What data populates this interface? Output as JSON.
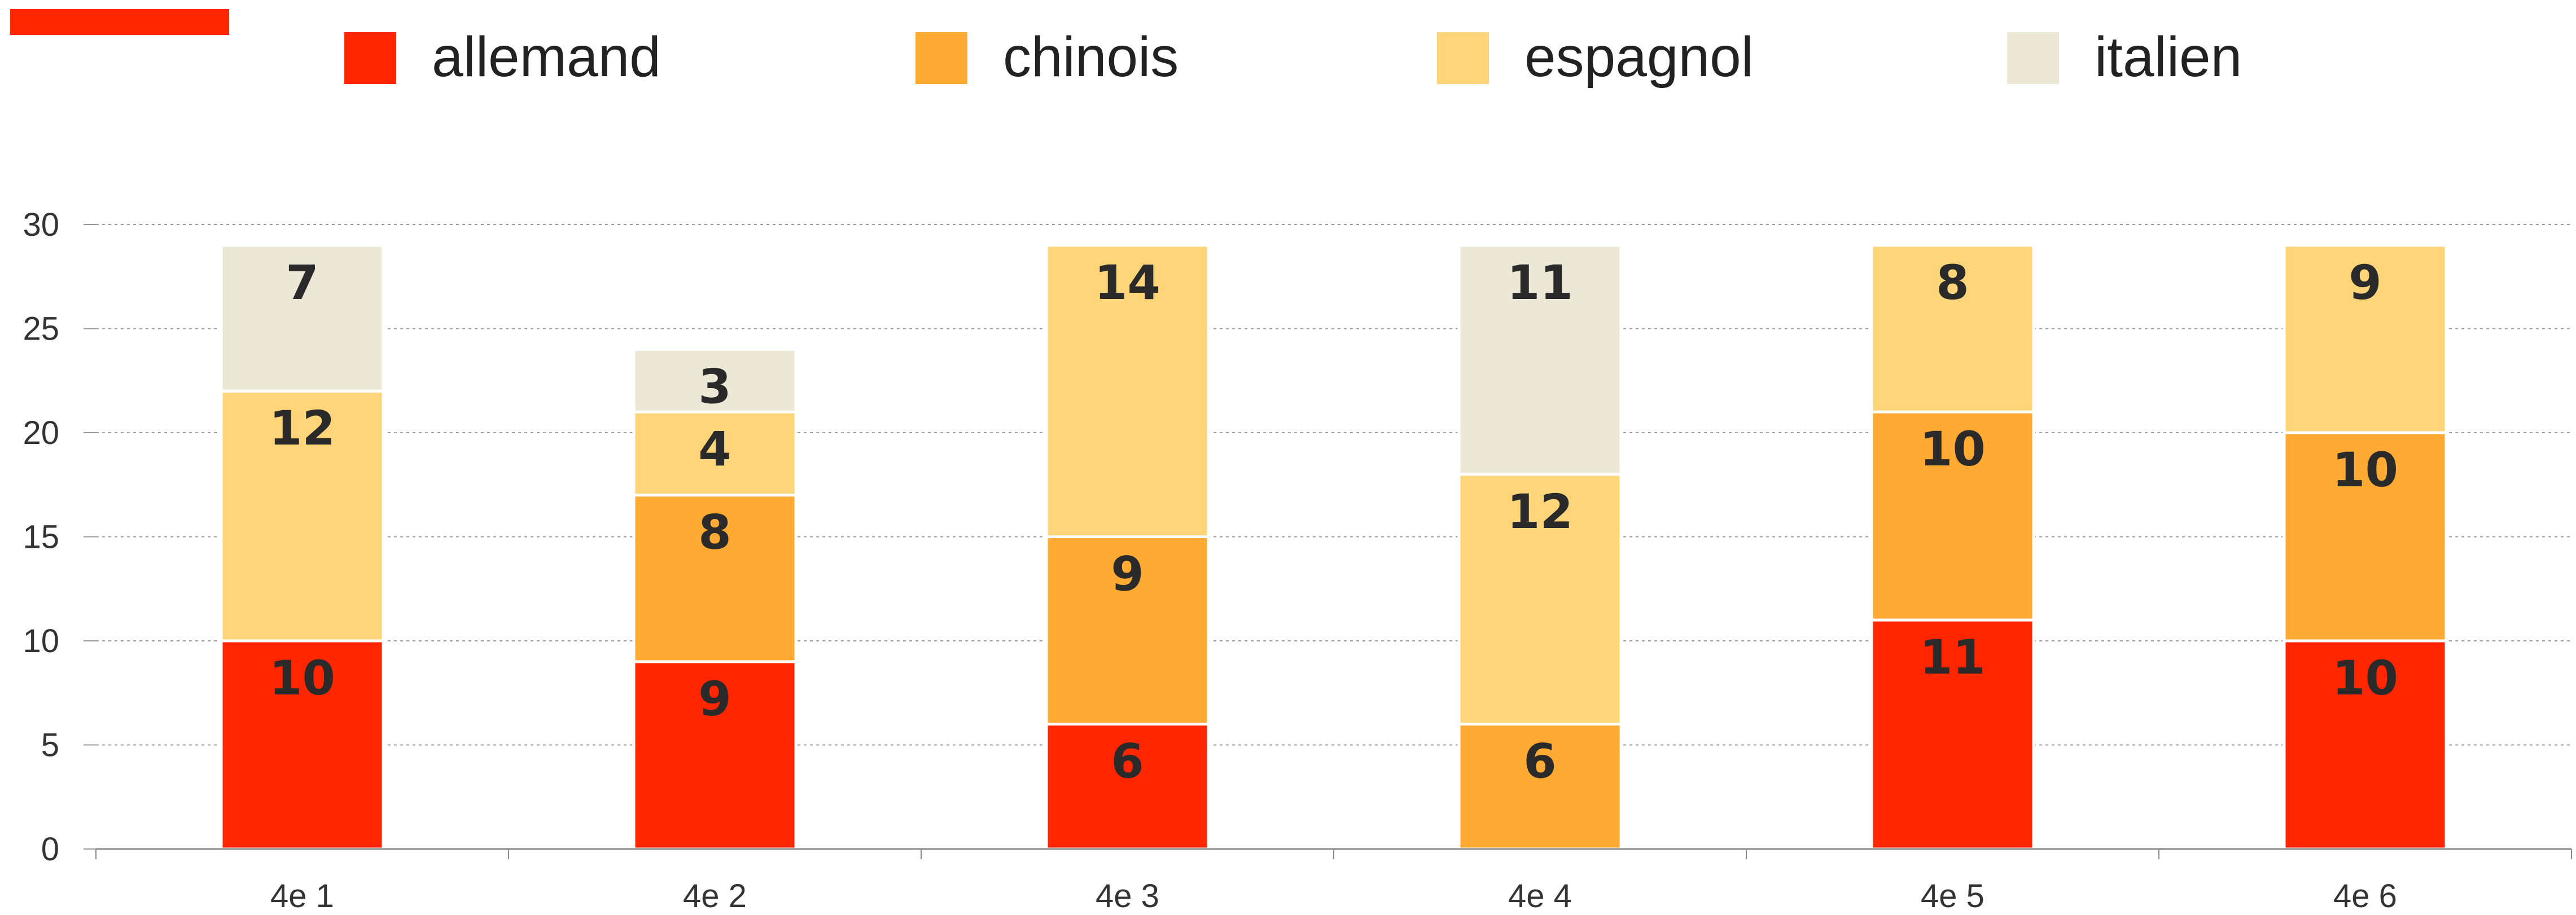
{
  "chart_data": {
    "type": "bar",
    "stacked": true,
    "title": "",
    "xlabel": "",
    "ylabel": "",
    "categories": [
      "4e 1",
      "4e 2",
      "4e 3",
      "4e 4",
      "4e 5",
      "4e 6"
    ],
    "series": [
      {
        "name": "allemand",
        "color": "#ff2600",
        "values": [
          10,
          9,
          6,
          0,
          11,
          10
        ]
      },
      {
        "name": "chinois",
        "color": "#ffaa33",
        "values": [
          0,
          8,
          9,
          6,
          10,
          10
        ]
      },
      {
        "name": "espagnol",
        "color": "#ffd57a",
        "values": [
          12,
          4,
          14,
          12,
          8,
          9
        ]
      },
      {
        "name": "italien",
        "color": "#ebe8d6",
        "values": [
          7,
          3,
          0,
          11,
          0,
          0
        ]
      }
    ],
    "ylim": [
      0,
      30
    ],
    "yticks": [
      0,
      5,
      10,
      15,
      20,
      25,
      30
    ],
    "grid": true,
    "legend_position": "top",
    "accent_color": "#ff2600"
  }
}
